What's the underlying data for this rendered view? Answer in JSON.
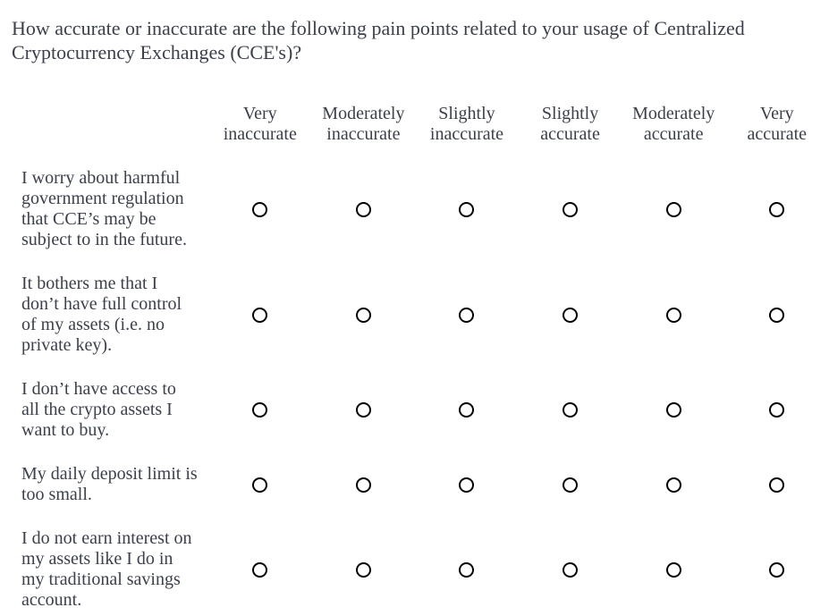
{
  "question": {
    "title": "How accurate or inaccurate are the following pain points related to your usage of Centralized Cryptocurrency Exchanges (CCE's)?"
  },
  "scale": [
    {
      "id": "very-inaccurate",
      "label": "Very inaccurate"
    },
    {
      "id": "moderately-inaccurate",
      "label": "Moderately inaccurate"
    },
    {
      "id": "slightly-inaccurate",
      "label": "Slightly inaccurate"
    },
    {
      "id": "slightly-accurate",
      "label": "Slightly accurate"
    },
    {
      "id": "moderately-accurate",
      "label": "Moderately accurate"
    },
    {
      "id": "very-accurate",
      "label": "Very accurate"
    }
  ],
  "rows": [
    {
      "id": "government-regulation",
      "label": "I worry about harmful\ngovernment regulation\nthat CCE’s may be\nsubject to in the future.",
      "selected": null
    },
    {
      "id": "no-full-control",
      "label": "It bothers me that I\ndon’t have full control\nof my assets (i.e. no\nprivate key).",
      "selected": null
    },
    {
      "id": "limited-asset-access",
      "label": "I don’t have access to\nall the crypto assets I\nwant to buy.",
      "selected": null
    },
    {
      "id": "deposit-limit",
      "label": "My daily deposit limit is\ntoo small.",
      "selected": null
    },
    {
      "id": "no-interest",
      "label": "I do not earn interest on\nmy assets like I do in\nmy traditional savings\naccount.",
      "selected": null
    }
  ],
  "colors": {
    "text": "#3b404b",
    "radio_border": "#000000",
    "background": "#ffffff"
  }
}
